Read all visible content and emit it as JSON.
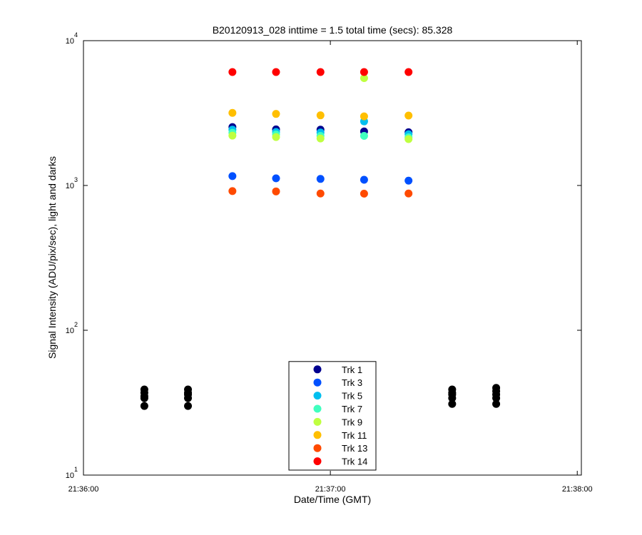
{
  "chart_data": {
    "type": "scatter",
    "title": "B20120913_028 inttime = 1.5 total time (secs): 85.328",
    "xlabel": "Date/Time (GMT)",
    "ylabel": "Signal Intensity (ADU/pix/sec), light and darks",
    "xlim": [
      77760,
      77881
    ],
    "xticks": [
      {
        "value": 77760,
        "label": "21:36:00"
      },
      {
        "value": 77820,
        "label": "21:37:00"
      },
      {
        "value": 77880,
        "label": "21:38:00"
      }
    ],
    "ylim": [
      10,
      10000
    ],
    "ylog": true,
    "yticks": [
      {
        "value": 10,
        "label": "10",
        "exponent": "1"
      },
      {
        "value": 100,
        "label": "10",
        "exponent": "2"
      },
      {
        "value": 1000,
        "label": "10",
        "exponent": "3"
      },
      {
        "value": 10000,
        "label": "10",
        "exponent": "4"
      }
    ],
    "legend": "south",
    "series": [
      {
        "name": "Trk 1",
        "color": "#00008f",
        "x": [
          77796.2,
          77806.8,
          77817.6,
          77828.2,
          77839.0
        ],
        "values": [
          2530,
          2440,
          2430,
          2360,
          2330
        ]
      },
      {
        "name": "Trk 3",
        "color": "#0050ff",
        "x": [
          77796.2,
          77806.8,
          77817.6,
          77828.2,
          77839.0
        ],
        "values": [
          1160,
          1120,
          1110,
          1095,
          1080
        ]
      },
      {
        "name": "Trk 5",
        "color": "#00bfef",
        "x": [
          77796.2,
          77806.8,
          77817.6,
          77828.2,
          77839.0
        ],
        "values": [
          2430,
          2340,
          2320,
          2770,
          2260
        ]
      },
      {
        "name": "Trk 7",
        "color": "#40ffbf",
        "x": [
          77796.2,
          77806.8,
          77817.6,
          77828.2,
          77839.0
        ],
        "values": [
          2310,
          2250,
          2200,
          2200,
          2150
        ]
      },
      {
        "name": "Trk 9",
        "color": "#bfff40",
        "x": [
          77796.2,
          77806.8,
          77817.6,
          77828.2,
          77839.0
        ],
        "values": [
          2210,
          2160,
          2110,
          5510,
          2090
        ]
      },
      {
        "name": "Trk 11",
        "color": "#ffbf00",
        "x": [
          77796.2,
          77806.8,
          77817.6,
          77828.2,
          77839.0
        ],
        "values": [
          3170,
          3120,
          3050,
          3000,
          3040
        ]
      },
      {
        "name": "Trk 13",
        "color": "#ff4a00",
        "x": [
          77796.2,
          77806.8,
          77817.6,
          77828.2,
          77839.0
        ],
        "values": [
          915,
          910,
          880,
          878,
          880
        ]
      },
      {
        "name": "Trk 14",
        "color": "#ff0000",
        "x": [
          77796.2,
          77806.8,
          77817.6,
          77828.2,
          77839.0
        ],
        "values": [
          6070,
          6070,
          6070,
          6070,
          6070
        ]
      },
      {
        "color": "#000000",
        "x": [
          77774.8,
          77774.8,
          77774.8,
          77774.8,
          77774.8,
          77785.4,
          77785.4,
          77785.4,
          77785.4,
          77785.4,
          77849.6,
          77849.6,
          77849.6,
          77849.6,
          77849.6,
          77860.3,
          77860.3,
          77860.3,
          77860.3,
          77860.3
        ],
        "values": [
          30,
          34,
          35,
          37,
          39,
          30,
          34,
          36,
          37,
          39,
          31,
          34,
          36,
          37,
          39,
          31,
          34,
          36,
          38,
          40
        ]
      }
    ]
  }
}
